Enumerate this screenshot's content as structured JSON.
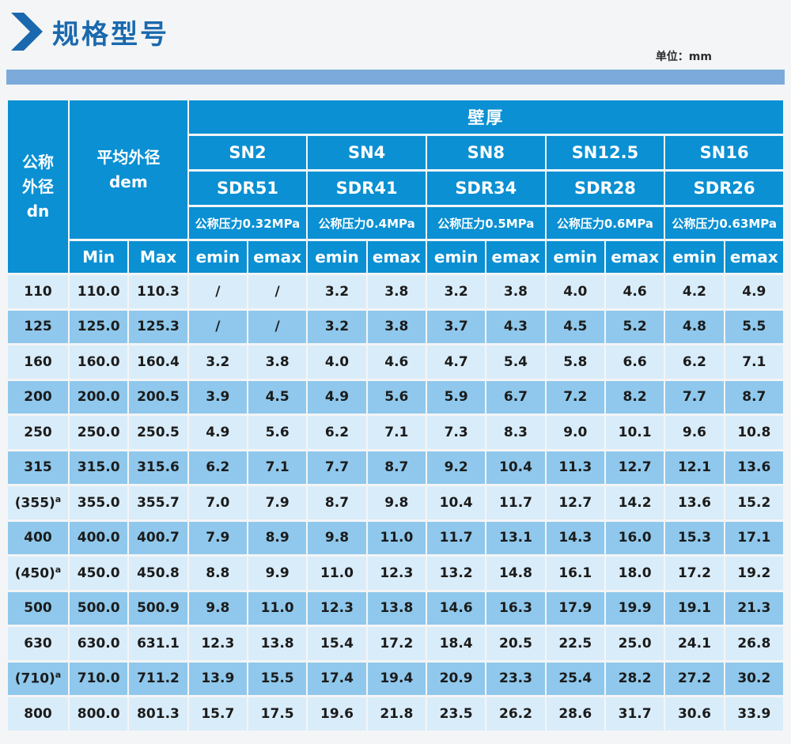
{
  "page": {
    "title": "规格型号",
    "unit_label": "单位：mm"
  },
  "colors": {
    "accent_blue": "#1a69ae",
    "table_header_blue": "#0a90d3",
    "row_light": "#d9ecf9",
    "row_medium": "#8fc8ec",
    "strip_blue": "#7cabdb"
  },
  "table": {
    "dn_header_lines": [
      "公称",
      "外径",
      "dn"
    ],
    "dem_header_lines": [
      "平均外径",
      "dem"
    ],
    "wall_thickness_label": "壁厚",
    "min_label": "Min",
    "max_label": "Max",
    "emin_label": "emin",
    "emax_label": "emax",
    "groups": [
      {
        "sn": "SN2",
        "sdr": "SDR51",
        "pressure": "公称压力0.32MPa"
      },
      {
        "sn": "SN4",
        "sdr": "SDR41",
        "pressure": "公称压力0.4MPa"
      },
      {
        "sn": "SN8",
        "sdr": "SDR34",
        "pressure": "公称压力0.5MPa"
      },
      {
        "sn": "SN12.5",
        "sdr": "SDR28",
        "pressure": "公称压力0.6MPa"
      },
      {
        "sn": "SN16",
        "sdr": "SDR26",
        "pressure": "公称压力0.63MPa"
      }
    ],
    "rows": [
      {
        "dn": "110",
        "sup": "",
        "min": "110.0",
        "max": "110.3",
        "values": [
          "/",
          "/",
          "3.2",
          "3.8",
          "3.2",
          "3.8",
          "4.0",
          "4.6",
          "4.2",
          "4.9"
        ]
      },
      {
        "dn": "125",
        "sup": "",
        "min": "125.0",
        "max": "125.3",
        "values": [
          "/",
          "/",
          "3.2",
          "3.8",
          "3.7",
          "4.3",
          "4.5",
          "5.2",
          "4.8",
          "5.5"
        ]
      },
      {
        "dn": "160",
        "sup": "",
        "min": "160.0",
        "max": "160.4",
        "values": [
          "3.2",
          "3.8",
          "4.0",
          "4.6",
          "4.7",
          "5.4",
          "5.8",
          "6.6",
          "6.2",
          "7.1"
        ]
      },
      {
        "dn": "200",
        "sup": "",
        "min": "200.0",
        "max": "200.5",
        "values": [
          "3.9",
          "4.5",
          "4.9",
          "5.6",
          "5.9",
          "6.7",
          "7.2",
          "8.2",
          "7.7",
          "8.7"
        ]
      },
      {
        "dn": "250",
        "sup": "",
        "min": "250.0",
        "max": "250.5",
        "values": [
          "4.9",
          "5.6",
          "6.2",
          "7.1",
          "7.3",
          "8.3",
          "9.0",
          "10.1",
          "9.6",
          "10.8"
        ]
      },
      {
        "dn": "315",
        "sup": "",
        "min": "315.0",
        "max": "315.6",
        "values": [
          "6.2",
          "7.1",
          "7.7",
          "8.7",
          "9.2",
          "10.4",
          "11.3",
          "12.7",
          "12.1",
          "13.6"
        ]
      },
      {
        "dn": "(355)",
        "sup": "a",
        "min": "355.0",
        "max": "355.7",
        "values": [
          "7.0",
          "7.9",
          "8.7",
          "9.8",
          "10.4",
          "11.7",
          "12.7",
          "14.2",
          "13.6",
          "15.2"
        ]
      },
      {
        "dn": "400",
        "sup": "",
        "min": "400.0",
        "max": "400.7",
        "values": [
          "7.9",
          "8.9",
          "9.8",
          "11.0",
          "11.7",
          "13.1",
          "14.3",
          "16.0",
          "15.3",
          "17.1"
        ]
      },
      {
        "dn": "(450)",
        "sup": "a",
        "min": "450.0",
        "max": "450.8",
        "values": [
          "8.8",
          "9.9",
          "11.0",
          "12.3",
          "13.2",
          "14.8",
          "16.1",
          "18.0",
          "17.2",
          "19.2"
        ]
      },
      {
        "dn": "500",
        "sup": "",
        "min": "500.0",
        "max": "500.9",
        "values": [
          "9.8",
          "11.0",
          "12.3",
          "13.8",
          "14.6",
          "16.3",
          "17.9",
          "19.9",
          "19.1",
          "21.3"
        ]
      },
      {
        "dn": "630",
        "sup": "",
        "min": "630.0",
        "max": "631.1",
        "values": [
          "12.3",
          "13.8",
          "15.4",
          "17.2",
          "18.4",
          "20.5",
          "22.5",
          "25.0",
          "24.1",
          "26.8"
        ]
      },
      {
        "dn": "(710)",
        "sup": "a",
        "min": "710.0",
        "max": "711.2",
        "values": [
          "13.9",
          "15.5",
          "17.4",
          "19.4",
          "20.9",
          "23.3",
          "25.4",
          "28.2",
          "27.2",
          "30.2"
        ]
      },
      {
        "dn": "800",
        "sup": "",
        "min": "800.0",
        "max": "801.3",
        "values": [
          "15.7",
          "17.5",
          "19.6",
          "21.8",
          "23.5",
          "26.2",
          "28.6",
          "31.7",
          "30.6",
          "33.9"
        ]
      }
    ]
  }
}
